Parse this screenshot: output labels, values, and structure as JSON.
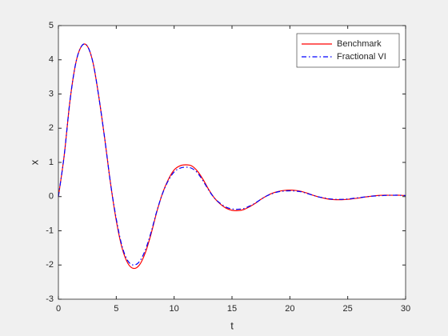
{
  "chart_data": {
    "type": "line",
    "x_label": "t",
    "y_label": "x",
    "x": [
      0,
      0.5,
      1,
      1.5,
      2,
      2.5,
      3,
      3.5,
      4,
      4.5,
      5,
      5.5,
      6,
      6.5,
      7,
      7.5,
      8,
      8.5,
      9,
      9.5,
      10,
      10.5,
      11,
      11.5,
      12,
      12.5,
      13,
      13.5,
      14,
      14.5,
      15,
      15.5,
      16,
      16.5,
      17,
      17.5,
      18,
      18.5,
      19,
      19.5,
      20,
      20.5,
      21,
      21.5,
      22,
      22.5,
      23,
      23.5,
      24,
      24.5,
      25,
      25.5,
      26,
      26.5,
      27,
      27.5,
      28,
      28.5,
      29,
      29.5,
      30
    ],
    "series": [
      {
        "name": "Benchmark",
        "color": "#ff0000",
        "dash": "solid",
        "values": [
          0,
          1.2,
          2.8,
          3.9,
          4.4,
          4.4,
          3.9,
          2.9,
          1.7,
          0.4,
          -0.7,
          -1.5,
          -1.95,
          -2.1,
          -2.0,
          -1.65,
          -1.1,
          -0.45,
          0.1,
          0.5,
          0.78,
          0.9,
          0.93,
          0.9,
          0.75,
          0.5,
          0.2,
          -0.05,
          -0.22,
          -0.34,
          -0.4,
          -0.41,
          -0.38,
          -0.3,
          -0.2,
          -0.08,
          0.02,
          0.1,
          0.15,
          0.18,
          0.19,
          0.18,
          0.15,
          0.1,
          0.04,
          -0.01,
          -0.05,
          -0.08,
          -0.09,
          -0.09,
          -0.08,
          -0.06,
          -0.04,
          -0.01,
          0.01,
          0.03,
          0.04,
          0.04,
          0.04,
          0.04,
          0.03
        ]
      },
      {
        "name": "Fractional VI",
        "color": "#0000ff",
        "dash": "dashdot",
        "values": [
          0,
          1.2,
          2.8,
          3.9,
          4.4,
          4.4,
          3.9,
          2.9,
          1.7,
          0.4,
          -0.65,
          -1.45,
          -1.88,
          -2.0,
          -1.9,
          -1.57,
          -1.05,
          -0.43,
          0.09,
          0.47,
          0.72,
          0.83,
          0.86,
          0.83,
          0.7,
          0.46,
          0.18,
          -0.05,
          -0.2,
          -0.31,
          -0.36,
          -0.37,
          -0.35,
          -0.28,
          -0.19,
          -0.08,
          0.02,
          0.09,
          0.14,
          0.16,
          0.17,
          0.16,
          0.14,
          0.09,
          0.04,
          -0.01,
          -0.04,
          -0.07,
          -0.08,
          -0.08,
          -0.07,
          -0.05,
          -0.03,
          -0.01,
          0.01,
          0.02,
          0.03,
          0.04,
          0.04,
          0.04,
          0.03
        ]
      }
    ],
    "xlim": [
      0,
      30
    ],
    "xticks": [
      0,
      5,
      10,
      15,
      20,
      25,
      30
    ],
    "ylim": [
      -3,
      5
    ],
    "yticks": [
      -3,
      -2,
      -1,
      0,
      1,
      2,
      3,
      4,
      5
    ],
    "legend": "northeast",
    "grid": false
  }
}
